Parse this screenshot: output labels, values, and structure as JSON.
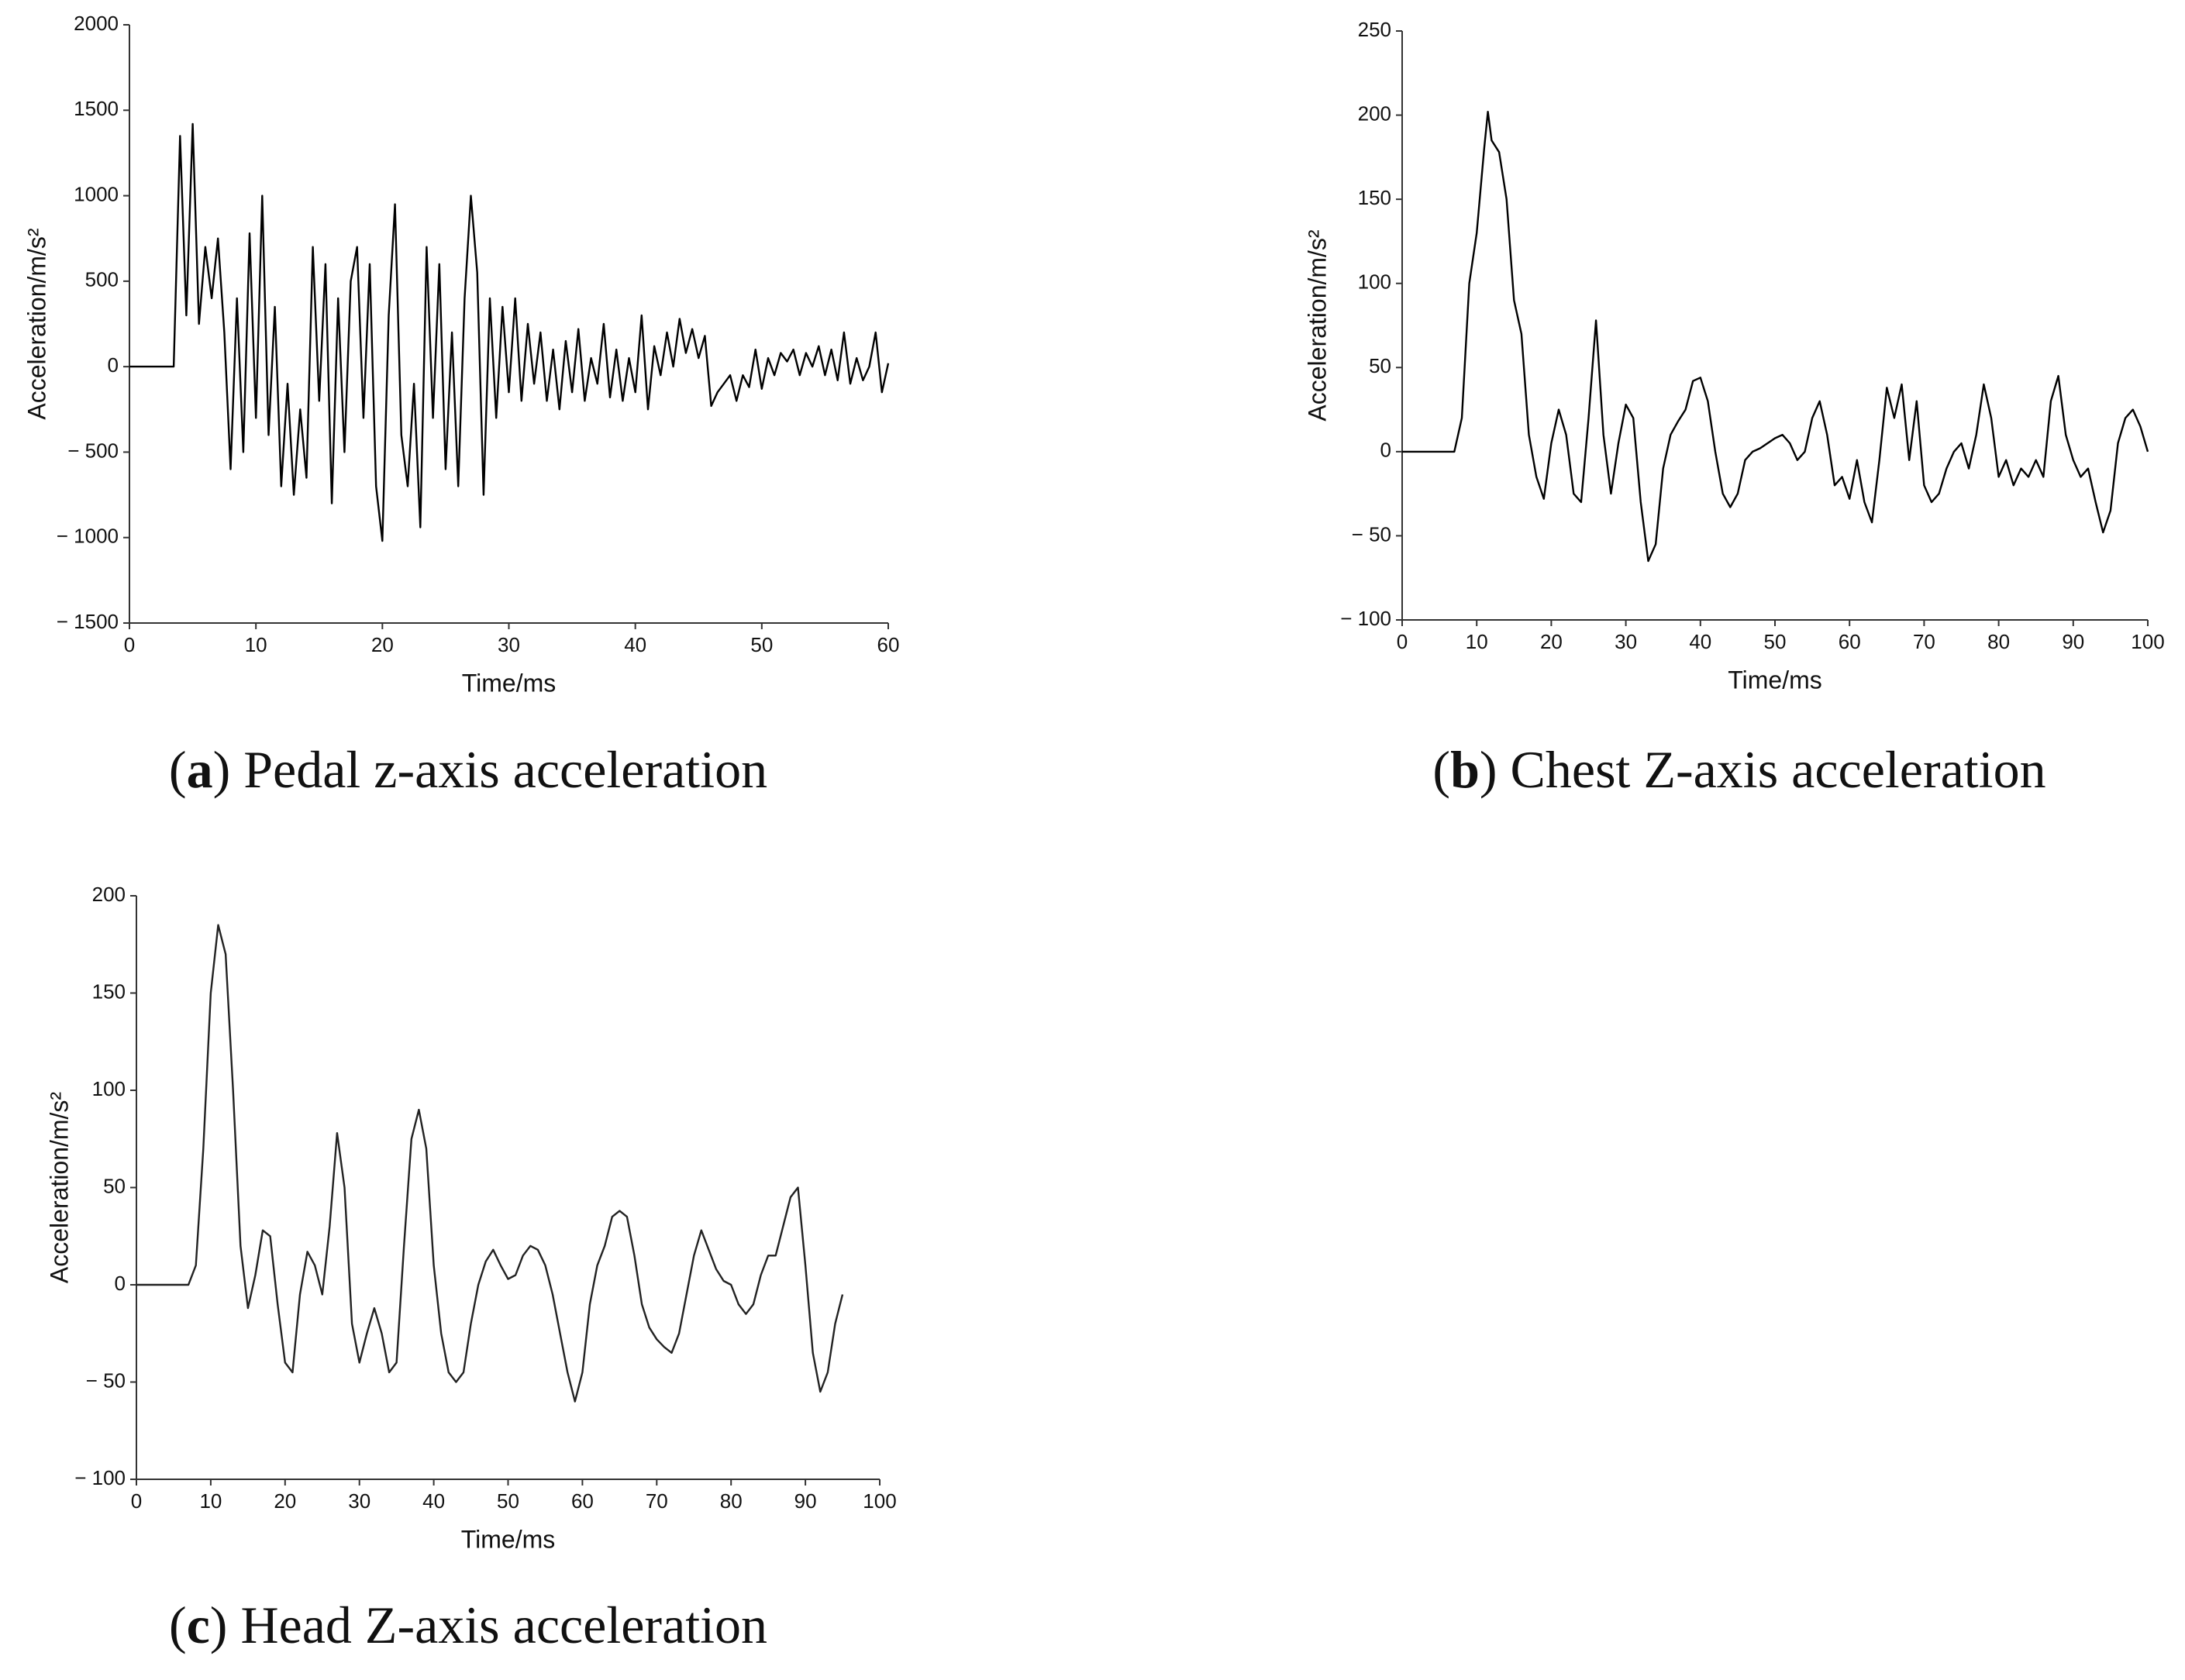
{
  "chart_data": [
    {
      "type": "line",
      "caption": "(a) Pedal z-axis acceleration",
      "x_label": "Time/ms",
      "y_label": "Acceleration/m/s²",
      "color": "#000000",
      "xlim": [
        0,
        60
      ],
      "xticks": [
        0,
        10,
        20,
        30,
        40,
        50,
        60
      ],
      "ylim": [
        -1500,
        2000
      ],
      "yticks": [
        {
          "value": -1500,
          "label": "− 1500"
        },
        {
          "value": -1000,
          "label": "− 1000"
        },
        {
          "value": -500,
          "label": "− 500"
        },
        0,
        500,
        1000,
        1500,
        2000
      ],
      "x": [
        0,
        3.5,
        4,
        4.5,
        5,
        5.5,
        6,
        6.5,
        7,
        7.5,
        8,
        8.5,
        9,
        9.5,
        10,
        10.5,
        11,
        11.5,
        12,
        12.5,
        13,
        13.5,
        14,
        14.5,
        15,
        15.5,
        16,
        16.5,
        17,
        17.5,
        18,
        18.5,
        19,
        19.5,
        20,
        20.5,
        21,
        21.5,
        22,
        22.5,
        23,
        23.5,
        24,
        24.5,
        25,
        25.5,
        26,
        26.5,
        27,
        27.5,
        28,
        28.5,
        29,
        29.5,
        30,
        30.5,
        31,
        31.5,
        32,
        32.5,
        33,
        33.5,
        34,
        34.5,
        35,
        35.5,
        36,
        36.5,
        37,
        37.5,
        38,
        38.5,
        39,
        39.5,
        40,
        40.5,
        41,
        41.5,
        42,
        42.5,
        43,
        43.5,
        44,
        44.5,
        45,
        45.5,
        46,
        46.5,
        47,
        47.5,
        48,
        48.5,
        49,
        49.5,
        50,
        50.5,
        51,
        51.5,
        52,
        52.5,
        53,
        53.5,
        54,
        54.5,
        55,
        55.5,
        56,
        56.5,
        57,
        57.5,
        58,
        58.5,
        59,
        59.5,
        60
      ],
      "values": [
        0,
        0,
        1350,
        300,
        1420,
        250,
        700,
        400,
        750,
        200,
        -600,
        400,
        -500,
        780,
        -300,
        1000,
        -400,
        350,
        -700,
        -100,
        -750,
        -250,
        -650,
        700,
        -200,
        600,
        -800,
        400,
        -500,
        500,
        700,
        -300,
        600,
        -700,
        -1020,
        300,
        950,
        -400,
        -700,
        -100,
        -940,
        700,
        -300,
        600,
        -600,
        200,
        -700,
        400,
        1000,
        550,
        -750,
        400,
        -300,
        350,
        -150,
        400,
        -200,
        250,
        -100,
        200,
        -200,
        100,
        -250,
        150,
        -150,
        220,
        -200,
        50,
        -100,
        250,
        -180,
        100,
        -200,
        50,
        -150,
        300,
        -250,
        120,
        -50,
        200,
        0,
        280,
        80,
        220,
        50,
        180,
        -230,
        -150,
        -100,
        -50,
        -200,
        -50,
        -120,
        100,
        -130,
        50,
        -50,
        80,
        30,
        100,
        -50,
        80,
        0,
        120,
        -50,
        100,
        -80,
        200,
        -100,
        50,
        -80,
        0,
        200,
        -150,
        20
      ]
    },
    {
      "type": "line",
      "caption": "(b) Chest Z-axis acceleration",
      "x_label": "Time/ms",
      "y_label": "Acceleration/m/s²",
      "color": "#000000",
      "xlim": [
        0,
        100
      ],
      "xticks": [
        0,
        10,
        20,
        30,
        40,
        50,
        60,
        70,
        80,
        90,
        100
      ],
      "ylim": [
        -100,
        250
      ],
      "yticks": [
        {
          "value": -100,
          "label": "− 100"
        },
        {
          "value": -50,
          "label": "− 50"
        },
        0,
        50,
        100,
        150,
        200,
        250
      ],
      "x": [
        0,
        1,
        2,
        3,
        4,
        5,
        6,
        7,
        8,
        9,
        10,
        11,
        11.5,
        12,
        13,
        14,
        15,
        16,
        17,
        18,
        19,
        20,
        21,
        22,
        23,
        24,
        25,
        26,
        27,
        28,
        29,
        30,
        31,
        32,
        33,
        34,
        35,
        36,
        37,
        38,
        39,
        40,
        41,
        42,
        43,
        44,
        45,
        46,
        47,
        48,
        49,
        50,
        51,
        52,
        53,
        54,
        55,
        56,
        57,
        58,
        59,
        60,
        61,
        62,
        63,
        64,
        65,
        66,
        67,
        68,
        69,
        70,
        71,
        72,
        73,
        74,
        75,
        76,
        77,
        78,
        79,
        80,
        81,
        82,
        83,
        84,
        85,
        86,
        87,
        88,
        89,
        90,
        91,
        92,
        93,
        94,
        95,
        96,
        97,
        98,
        99,
        100
      ],
      "values": [
        0,
        0,
        0,
        0,
        0,
        0,
        0,
        0,
        20,
        100,
        130,
        180,
        202,
        185,
        178,
        150,
        90,
        70,
        10,
        -15,
        -28,
        5,
        25,
        10,
        -25,
        -30,
        20,
        78,
        10,
        -25,
        5,
        28,
        20,
        -30,
        -65,
        -55,
        -10,
        10,
        18,
        25,
        42,
        44,
        30,
        0,
        -25,
        -33,
        -25,
        -5,
        0,
        2,
        5,
        8,
        10,
        5,
        -5,
        0,
        20,
        30,
        10,
        -20,
        -15,
        -28,
        -5,
        -30,
        -42,
        -5,
        38,
        20,
        40,
        -5,
        30,
        -20,
        -30,
        -25,
        -10,
        0,
        5,
        -10,
        10,
        40,
        20,
        -15,
        -5,
        -20,
        -10,
        -15,
        -5,
        -15,
        30,
        45,
        10,
        -5,
        -15,
        -10,
        -30,
        -48,
        -35,
        5,
        20,
        25,
        15,
        0
      ]
    },
    {
      "type": "line",
      "caption": "(c) Head Z-axis acceleration",
      "x_label": "Time/ms",
      "y_label": "Acceleration/m/s²",
      "color": "#222222",
      "xlim": [
        0,
        100
      ],
      "xticks": [
        0,
        10,
        20,
        30,
        40,
        50,
        60,
        70,
        80,
        90,
        100
      ],
      "ylim": [
        -100,
        200
      ],
      "yticks": [
        {
          "value": -100,
          "label": "− 100"
        },
        {
          "value": -50,
          "label": "− 50"
        },
        0,
        50,
        100,
        150,
        200
      ],
      "x": [
        0,
        7,
        8,
        9,
        10,
        11,
        12,
        13,
        14,
        15,
        16,
        17,
        18,
        19,
        20,
        21,
        22,
        23,
        24,
        25,
        26,
        27,
        28,
        29,
        30,
        31,
        32,
        33,
        34,
        35,
        36,
        37,
        38,
        39,
        40,
        41,
        42,
        43,
        44,
        45,
        46,
        47,
        48,
        49,
        50,
        51,
        52,
        53,
        54,
        55,
        56,
        57,
        58,
        59,
        60,
        61,
        62,
        63,
        64,
        65,
        66,
        67,
        68,
        69,
        70,
        71,
        72,
        73,
        74,
        75,
        76,
        77,
        78,
        79,
        80,
        81,
        82,
        83,
        84,
        85,
        86,
        87,
        88,
        89,
        90,
        91,
        92,
        93,
        94,
        95
      ],
      "values": [
        0,
        0,
        10,
        70,
        150,
        185,
        170,
        100,
        20,
        -12,
        5,
        28,
        25,
        -10,
        -40,
        -45,
        -5,
        17,
        10,
        -5,
        30,
        78,
        50,
        -20,
        -40,
        -25,
        -12,
        -25,
        -45,
        -40,
        20,
        75,
        90,
        70,
        10,
        -25,
        -45,
        -50,
        -45,
        -20,
        0,
        12,
        18,
        10,
        3,
        5,
        15,
        20,
        18,
        10,
        -5,
        -25,
        -45,
        -60,
        -45,
        -10,
        10,
        20,
        35,
        38,
        35,
        15,
        -10,
        -22,
        -28,
        -32,
        -35,
        -25,
        -5,
        15,
        28,
        18,
        8,
        2,
        0,
        -10,
        -15,
        -10,
        5,
        15,
        15,
        30,
        45,
        50,
        10,
        -35,
        -55,
        -45,
        -20,
        -5
      ]
    }
  ]
}
